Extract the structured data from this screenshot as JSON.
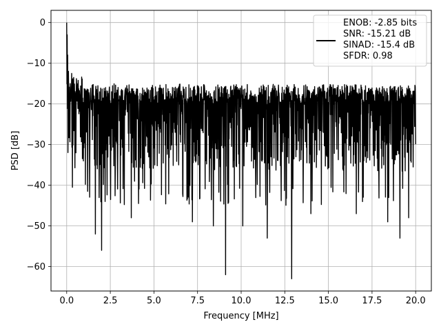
{
  "chart_data": {
    "type": "line",
    "xlabel": "Frequency [MHz]",
    "ylabel": "PSD [dB]",
    "xlim": [
      -0.9,
      20.9
    ],
    "ylim": [
      -66,
      3
    ],
    "xticks": [
      0,
      2.5,
      5,
      7.5,
      10,
      12.5,
      15,
      17.5,
      20
    ],
    "xtick_labels": [
      "0.0",
      "2.5",
      "5.0",
      "7.5",
      "10.0",
      "12.5",
      "15.0",
      "17.5",
      "20.0"
    ],
    "yticks": [
      0,
      -10,
      -20,
      -30,
      -40,
      -50,
      -60
    ],
    "ytick_labels": [
      "0",
      "−10",
      "−20",
      "−30",
      "−40",
      "−50",
      "−60"
    ],
    "grid": true,
    "legend_position": "top-right",
    "line_color": "#000000",
    "grid_color": "#b0b0b0",
    "series": [
      {
        "name": "ENOB: -2.85 bits\nSNR: -15.21 dB\nSINAD: -15.4 dB\nSFDR: 0.98",
        "legend_lines": [
          "ENOB: -2.85 bits",
          "SNR: -15.21 dB",
          "SINAD: -15.4 dB",
          "SFDR: 0.98"
        ],
        "x_range": [
          0,
          20
        ],
        "n_points": 1400,
        "noise_floor_db": -25,
        "typical_max_db": -15,
        "typical_min_db": -36,
        "peak_points": [
          {
            "x": 0.0,
            "y": 0
          },
          {
            "x": 0.03,
            "y": -3
          },
          {
            "x": 0.06,
            "y": -8
          },
          {
            "x": 0.1,
            "y": -12
          },
          {
            "x": 0.2,
            "y": -15
          },
          {
            "x": 1.65,
            "y": -52
          },
          {
            "x": 2.0,
            "y": -56
          },
          {
            "x": 2.2,
            "y": -44
          },
          {
            "x": 3.7,
            "y": -48
          },
          {
            "x": 7.2,
            "y": -49
          },
          {
            "x": 8.4,
            "y": -50
          },
          {
            "x": 9.1,
            "y": -62
          },
          {
            "x": 10.1,
            "y": -50
          },
          {
            "x": 11.5,
            "y": -53
          },
          {
            "x": 12.9,
            "y": -63
          },
          {
            "x": 14.0,
            "y": -47
          },
          {
            "x": 16.6,
            "y": -47
          },
          {
            "x": 18.4,
            "y": -49
          },
          {
            "x": 19.1,
            "y": -53
          },
          {
            "x": 19.6,
            "y": -48
          }
        ]
      }
    ]
  }
}
